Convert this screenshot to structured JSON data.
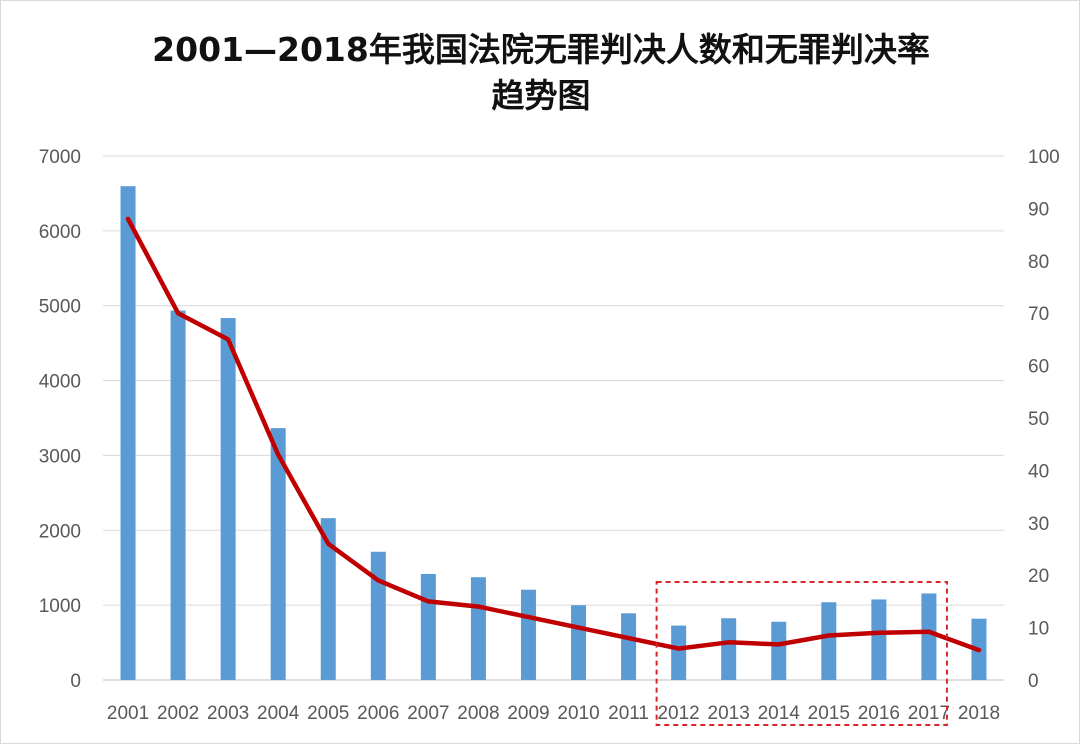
{
  "chart_data": {
    "type": "bar",
    "title_line1": "2001—2018年我国法院无罪判决人数和无罪判决率",
    "title_line2": "趋势图",
    "categories": [
      "2001",
      "2002",
      "2003",
      "2004",
      "2005",
      "2006",
      "2007",
      "2008",
      "2009",
      "2010",
      "2011",
      "2012",
      "2013",
      "2014",
      "2015",
      "2016",
      "2017",
      "2018"
    ],
    "ylim_left": [
      0,
      7000
    ],
    "yticks_left": [
      "0",
      "1000",
      "2000",
      "3000",
      "4000",
      "5000",
      "6000",
      "7000"
    ],
    "ylim_right": [
      0,
      100
    ],
    "yticks_right": [
      "0",
      "10",
      "20",
      "30",
      "40",
      "50",
      "60",
      "70",
      "80",
      "90",
      "100"
    ],
    "grid": true,
    "legend": "none",
    "series": [
      {
        "type": "bar",
        "axis": "left",
        "color": "#5b9bd5",
        "values": [
          6597,
          4935,
          4835,
          3365,
          2162,
          1713,
          1417,
          1373,
          1206,
          999,
          891,
          727,
          825,
          778,
          1039,
          1076,
          1156,
          819
        ]
      },
      {
        "type": "line",
        "axis": "right",
        "color": "#c00000",
        "values": [
          88,
          70,
          65,
          43,
          26,
          19,
          15,
          14,
          12,
          10,
          8,
          6,
          7.2,
          6.8,
          8.5,
          9,
          9.2,
          5.7
        ]
      }
    ],
    "highlight": {
      "from": "2012",
      "to": "2017",
      "style": "dashed-box",
      "color": "#d9262b"
    }
  }
}
